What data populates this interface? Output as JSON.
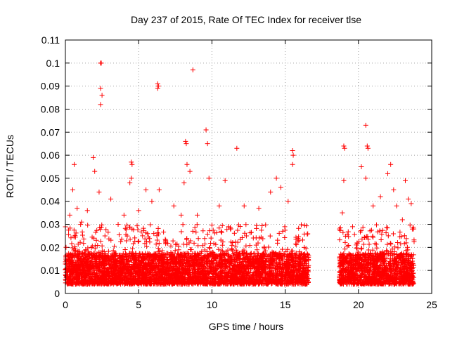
{
  "chart_data": {
    "type": "scatter",
    "title": "Day 237 of 2015, Rate Of TEC Index for receiver tlse",
    "xlabel": "GPS time / hours",
    "ylabel": "ROTI / TECUs",
    "xlim": [
      0,
      25
    ],
    "ylim": [
      0,
      0.11
    ],
    "xticks": [
      "0",
      "5",
      "10",
      "15",
      "20",
      "25"
    ],
    "yticks": [
      "0",
      "0.01",
      "0.02",
      "0.03",
      "0.04",
      "0.05",
      "0.06",
      "0.07",
      "0.08",
      "0.09",
      "0.1",
      "0.11"
    ],
    "grid": true,
    "marker": "+",
    "color": "#ff0000",
    "data_gaps_hours": [
      [
        16.6,
        18.7
      ]
    ],
    "series": [
      {
        "name": "ROTI",
        "points": [
          [
            0.1,
            0.011
          ],
          [
            0.3,
            0.034
          ],
          [
            0.5,
            0.045
          ],
          [
            0.6,
            0.056
          ],
          [
            0.8,
            0.037
          ],
          [
            1.1,
            0.031
          ],
          [
            1.5,
            0.036
          ],
          [
            1.9,
            0.059
          ],
          [
            2.0,
            0.053
          ],
          [
            2.4,
            0.1
          ],
          [
            2.45,
            0.1
          ],
          [
            2.4,
            0.089
          ],
          [
            2.5,
            0.086
          ],
          [
            2.4,
            0.082
          ],
          [
            2.3,
            0.044
          ],
          [
            3.1,
            0.041
          ],
          [
            3.6,
            0.03
          ],
          [
            4.0,
            0.034
          ],
          [
            4.4,
            0.048
          ],
          [
            4.5,
            0.057
          ],
          [
            4.55,
            0.056
          ],
          [
            4.5,
            0.05
          ],
          [
            5.0,
            0.036
          ],
          [
            5.5,
            0.045
          ],
          [
            5.9,
            0.04
          ],
          [
            6.3,
            0.091
          ],
          [
            6.35,
            0.09
          ],
          [
            6.3,
            0.089
          ],
          [
            6.4,
            0.045
          ],
          [
            7.4,
            0.038
          ],
          [
            7.9,
            0.034
          ],
          [
            8.1,
            0.048
          ],
          [
            8.2,
            0.066
          ],
          [
            8.25,
            0.065
          ],
          [
            8.3,
            0.056
          ],
          [
            8.5,
            0.053
          ],
          [
            8.7,
            0.097
          ],
          [
            9.0,
            0.034
          ],
          [
            9.6,
            0.071
          ],
          [
            9.7,
            0.065
          ],
          [
            9.8,
            0.05
          ],
          [
            10.5,
            0.038
          ],
          [
            10.9,
            0.049
          ],
          [
            11.7,
            0.063
          ],
          [
            12.2,
            0.038
          ],
          [
            13.2,
            0.037
          ],
          [
            14.0,
            0.044
          ],
          [
            14.4,
            0.05
          ],
          [
            14.7,
            0.046
          ],
          [
            15.2,
            0.04
          ],
          [
            15.5,
            0.062
          ],
          [
            15.55,
            0.06
          ],
          [
            15.5,
            0.056
          ],
          [
            16.3,
            0.02
          ],
          [
            18.7,
            0.028
          ],
          [
            18.9,
            0.035
          ],
          [
            19.0,
            0.064
          ],
          [
            19.05,
            0.063
          ],
          [
            19.0,
            0.049
          ],
          [
            19.6,
            0.029
          ],
          [
            20.2,
            0.055
          ],
          [
            20.5,
            0.073
          ],
          [
            20.6,
            0.064
          ],
          [
            20.65,
            0.063
          ],
          [
            20.5,
            0.05
          ],
          [
            21.0,
            0.038
          ],
          [
            21.5,
            0.042
          ],
          [
            22.0,
            0.052
          ],
          [
            22.2,
            0.056
          ],
          [
            22.4,
            0.045
          ],
          [
            22.6,
            0.038
          ],
          [
            23.0,
            0.032
          ],
          [
            23.2,
            0.049
          ],
          [
            23.4,
            0.041
          ],
          [
            23.6,
            0.039
          ]
        ]
      }
    ],
    "dense_band": [
      {
        "x_from": 0.0,
        "x_to": 16.6,
        "y_floor": 0.004,
        "y_median": 0.013,
        "y_upper": 0.03
      },
      {
        "x_from": 18.7,
        "x_to": 23.8,
        "y_floor": 0.004,
        "y_median": 0.013,
        "y_upper": 0.03
      }
    ]
  }
}
